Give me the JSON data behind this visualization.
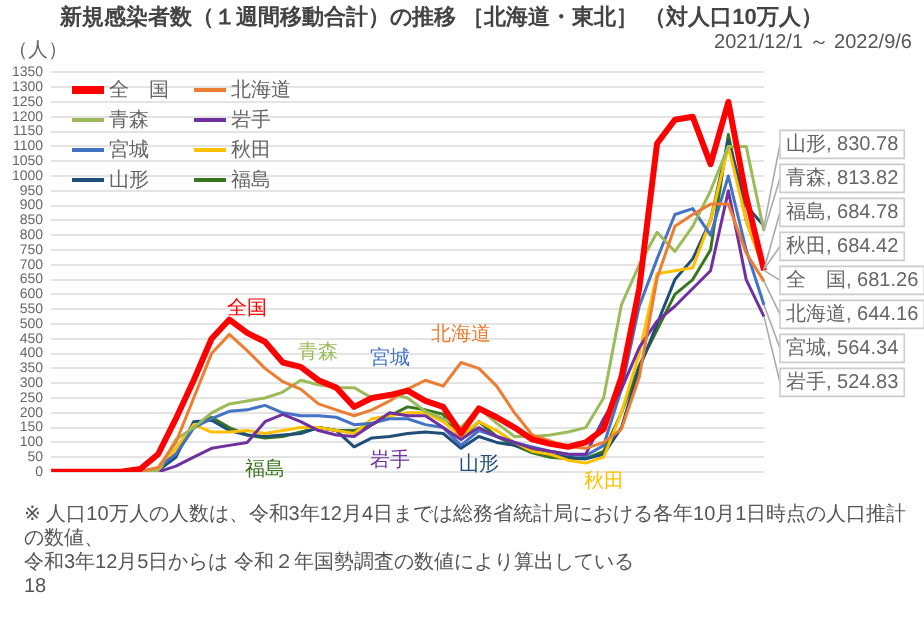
{
  "chart_data": {
    "type": "line",
    "title": "新規感染者数（１週間移動合計）の推移 ［北海道・東北］ （対人口10万人）",
    "subtitle": "2021/12/1 ～ 2022/9/6",
    "ylabel": "（人）",
    "categories": [
      null,
      null,
      null,
      null,
      null,
      null,
      null,
      null,
      null,
      null,
      null,
      null,
      null,
      null,
      null,
      null,
      null,
      null,
      null,
      null,
      null,
      null,
      null,
      null,
      null,
      null,
      null,
      null,
      null,
      null,
      null,
      null,
      null,
      null,
      null,
      null,
      null,
      null,
      null,
      null,
      null
    ],
    "ylim": [
      0,
      1350
    ],
    "yticks": [
      0,
      50,
      100,
      150,
      200,
      250,
      300,
      350,
      400,
      450,
      500,
      550,
      600,
      650,
      700,
      750,
      800,
      850,
      900,
      950,
      1000,
      1050,
      1100,
      1150,
      1200,
      1250,
      1300,
      1350
    ],
    "grid": "y",
    "legend": "top left",
    "tick_labels": "y",
    "marker": "none",
    "line_style": "solid",
    "series": [
      {
        "name": "全　国",
        "color": "#ff0000",
        "values": [
          1,
          1,
          1,
          1,
          2,
          10,
          60,
          180,
          310,
          450,
          515,
          470,
          440,
          370,
          355,
          310,
          285,
          220,
          250,
          260,
          275,
          240,
          220,
          130,
          215,
          185,
          150,
          110,
          95,
          85,
          100,
          145,
          320,
          620,
          1110,
          1190,
          1200,
          1040,
          1250,
          930,
          681.26
        ],
        "value_labels": [
          null,
          null,
          null,
          null,
          null,
          null,
          null,
          null,
          null,
          null,
          null,
          null,
          null,
          null,
          null,
          null,
          null,
          null,
          null,
          null,
          null,
          null,
          null,
          null,
          null,
          null,
          null,
          null,
          null,
          null,
          null,
          null,
          null,
          null,
          null,
          null,
          null,
          null,
          null,
          null,
          "全　国, 681.26"
        ]
      },
      {
        "name": "北海道",
        "color": "#ed7d31",
        "values": [
          null,
          null,
          null,
          null,
          null,
          2,
          15,
          100,
          250,
          400,
          465,
          410,
          350,
          305,
          280,
          230,
          210,
          190,
          210,
          240,
          280,
          310,
          290,
          370,
          350,
          290,
          200,
          125,
          105,
          85,
          80,
          100,
          145,
          320,
          655,
          830,
          870,
          905,
          905,
          740,
          644.16
        ],
        "value_labels": [
          null,
          null,
          null,
          null,
          null,
          null,
          null,
          null,
          null,
          null,
          null,
          null,
          null,
          null,
          null,
          null,
          null,
          null,
          null,
          null,
          null,
          null,
          null,
          null,
          null,
          null,
          null,
          null,
          null,
          null,
          null,
          null,
          null,
          null,
          null,
          null,
          null,
          null,
          null,
          null,
          "北海道, 644.16"
        ]
      },
      {
        "name": "青森",
        "color": "#9bbb59",
        "values": [
          null,
          null,
          null,
          null,
          null,
          1,
          5,
          110,
          150,
          200,
          230,
          240,
          250,
          270,
          310,
          295,
          285,
          285,
          250,
          265,
          250,
          205,
          180,
          150,
          215,
          165,
          120,
          120,
          125,
          135,
          150,
          250,
          565,
          700,
          810,
          745,
          830,
          950,
          1100,
          1100,
          813.82
        ],
        "value_labels": [
          null,
          null,
          null,
          null,
          null,
          null,
          null,
          null,
          null,
          null,
          null,
          null,
          null,
          null,
          null,
          null,
          null,
          null,
          null,
          null,
          null,
          null,
          null,
          null,
          null,
          null,
          null,
          null,
          null,
          null,
          null,
          null,
          null,
          null,
          null,
          null,
          null,
          null,
          null,
          null,
          "青森, 813.82"
        ]
      },
      {
        "name": "岩手",
        "color": "#7030a0",
        "values": [
          null,
          null,
          null,
          null,
          null,
          0,
          0,
          20,
          50,
          80,
          90,
          100,
          170,
          195,
          170,
          140,
          125,
          120,
          160,
          200,
          190,
          190,
          150,
          110,
          150,
          120,
          100,
          80,
          70,
          60,
          60,
          180,
          280,
          420,
          510,
          560,
          620,
          680,
          950,
          650,
          524.83
        ],
        "value_labels": [
          null,
          null,
          null,
          null,
          null,
          null,
          null,
          null,
          null,
          null,
          null,
          null,
          null,
          null,
          null,
          null,
          null,
          null,
          null,
          null,
          null,
          null,
          null,
          null,
          null,
          null,
          null,
          null,
          null,
          null,
          null,
          null,
          null,
          null,
          null,
          null,
          null,
          null,
          null,
          null,
          "岩手, 524.83"
        ]
      },
      {
        "name": "宮城",
        "color": "#4472c4",
        "values": [
          null,
          null,
          null,
          null,
          null,
          null,
          15,
          60,
          150,
          180,
          205,
          210,
          225,
          200,
          190,
          190,
          185,
          160,
          165,
          180,
          180,
          160,
          150,
          90,
          140,
          120,
          100,
          85,
          70,
          60,
          55,
          90,
          280,
          560,
          720,
          870,
          890,
          800,
          1000,
          750,
          564.34
        ],
        "value_labels": [
          null,
          null,
          null,
          null,
          null,
          null,
          null,
          null,
          null,
          null,
          null,
          null,
          null,
          null,
          null,
          null,
          null,
          null,
          null,
          null,
          null,
          null,
          null,
          null,
          null,
          null,
          null,
          null,
          null,
          null,
          null,
          null,
          null,
          null,
          null,
          null,
          null,
          null,
          null,
          null,
          "宮城, 564.34"
        ]
      },
      {
        "name": "秋田",
        "color": "#ffc000",
        "values": [
          null,
          null,
          null,
          null,
          null,
          0,
          5,
          80,
          160,
          135,
          135,
          140,
          130,
          140,
          150,
          150,
          140,
          130,
          180,
          190,
          200,
          200,
          170,
          120,
          170,
          140,
          100,
          70,
          60,
          40,
          30,
          50,
          200,
          400,
          670,
          680,
          690,
          850,
          1100,
          850,
          684.42
        ],
        "value_labels": [
          null,
          null,
          null,
          null,
          null,
          null,
          null,
          null,
          null,
          null,
          null,
          null,
          null,
          null,
          null,
          null,
          null,
          null,
          null,
          null,
          null,
          null,
          null,
          null,
          null,
          null,
          null,
          null,
          null,
          null,
          null,
          null,
          null,
          null,
          null,
          null,
          null,
          null,
          null,
          null,
          "秋田, 684.42"
        ]
      },
      {
        "name": "山形",
        "color": "#1f4e79",
        "values": [
          null,
          null,
          null,
          null,
          null,
          0,
          5,
          50,
          170,
          175,
          140,
          125,
          120,
          125,
          130,
          150,
          140,
          85,
          115,
          120,
          130,
          135,
          130,
          80,
          120,
          100,
          90,
          75,
          60,
          50,
          45,
          60,
          150,
          350,
          500,
          650,
          720,
          850,
          1120,
          900,
          830.78
        ],
        "value_labels": [
          null,
          null,
          null,
          null,
          null,
          null,
          null,
          null,
          null,
          null,
          null,
          null,
          null,
          null,
          null,
          null,
          null,
          null,
          null,
          null,
          null,
          null,
          null,
          null,
          null,
          null,
          null,
          null,
          null,
          null,
          null,
          null,
          null,
          null,
          null,
          null,
          null,
          null,
          null,
          null,
          "山形, 830.78"
        ]
      },
      {
        "name": "福島",
        "color": "#38761d",
        "values": [
          null,
          null,
          null,
          null,
          null,
          0,
          10,
          60,
          150,
          185,
          150,
          125,
          115,
          120,
          135,
          150,
          140,
          140,
          160,
          190,
          220,
          210,
          195,
          110,
          170,
          120,
          90,
          65,
          50,
          45,
          45,
          70,
          200,
          360,
          480,
          600,
          650,
          750,
          1140,
          850,
          684.78
        ],
        "value_labels": [
          null,
          null,
          null,
          null,
          null,
          null,
          null,
          null,
          null,
          null,
          null,
          null,
          null,
          null,
          null,
          null,
          null,
          null,
          null,
          null,
          null,
          null,
          null,
          null,
          null,
          null,
          null,
          null,
          null,
          null,
          null,
          null,
          null,
          null,
          null,
          null,
          null,
          null,
          null,
          null,
          "福島, 684.78"
        ]
      }
    ],
    "annotations": [
      "全国",
      "北海道",
      "青森",
      "宮城",
      "福島",
      "岩手",
      "山形",
      "秋田",
      "※ 人口10万人の人数は、令和3年12月4日までは総務省統計局における各年10月1日時点の人口推計の数値、",
      "令和3年12月5日からは 令和２年国勢調査の数値により算出している",
      "18"
    ]
  }
}
